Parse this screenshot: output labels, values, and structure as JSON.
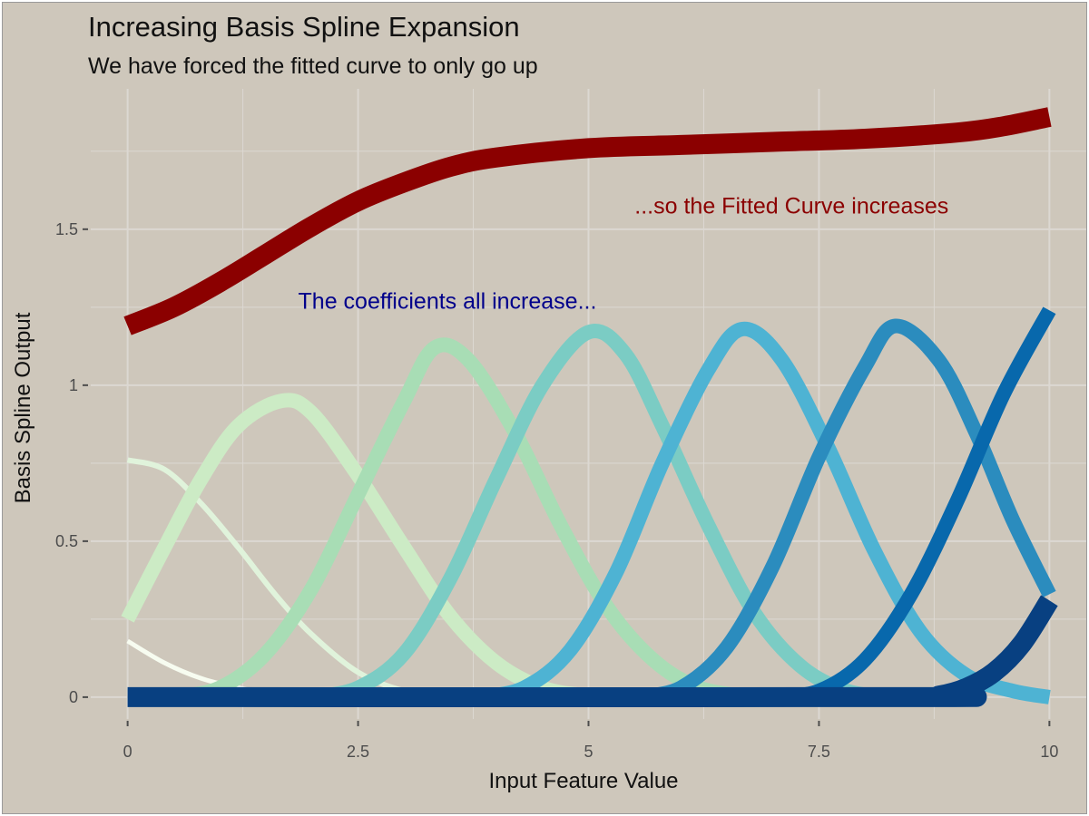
{
  "chart_data": {
    "type": "line",
    "title": "Increasing Basis Spline Expansion",
    "subtitle": "We have forced the fitted curve to only go up",
    "xlabel": "Input Feature Value",
    "ylabel": "Basis Spline Output",
    "xlim": [
      -0.4,
      10.4
    ],
    "ylim": [
      -0.07,
      1.95
    ],
    "x_ticks": [
      0,
      2.5,
      5,
      7.5,
      10
    ],
    "x_tick_labels": [
      "0",
      "2.5",
      "5",
      "7.5",
      "10"
    ],
    "x_minor_ticks": [
      1.25,
      3.75,
      6.25,
      8.75
    ],
    "y_ticks": [
      0,
      0.5,
      1,
      1.5
    ],
    "y_tick_labels": [
      "0",
      "0.5",
      "1",
      "1.5"
    ],
    "y_minor_ticks": [
      0.25,
      0.75,
      1.25,
      1.75
    ],
    "grid": true,
    "background": "#cec7bb",
    "grid_color": "#dcd8d2",
    "annotations": [
      {
        "text": "...so the Fitted Curve increases",
        "x": 5.5,
        "y": 1.55,
        "color": "#8b0000",
        "anchor": "start"
      },
      {
        "text": "The coefficients all increase...",
        "x": 1.85,
        "y": 1.245,
        "color": "#00008b",
        "anchor": "start"
      }
    ],
    "series": [
      {
        "name": "basis-1",
        "color": "#f7fcf0",
        "width": 5,
        "points": [
          [
            0,
            0.18
          ],
          [
            0.4,
            0.11
          ],
          [
            0.8,
            0.06
          ],
          [
            1.2,
            0.03
          ],
          [
            1.6,
            0.01
          ],
          [
            2.0,
            0.003
          ],
          [
            2.5,
            0
          ]
        ]
      },
      {
        "name": "basis-2",
        "color": "#e0f3db",
        "width": 6,
        "points": [
          [
            0,
            0.76
          ],
          [
            0.4,
            0.73
          ],
          [
            0.8,
            0.62
          ],
          [
            1.2,
            0.48
          ],
          [
            1.6,
            0.33
          ],
          [
            2.0,
            0.2
          ],
          [
            2.5,
            0.08
          ],
          [
            3.0,
            0.02
          ],
          [
            3.5,
            0.003
          ],
          [
            4.0,
            0
          ]
        ]
      },
      {
        "name": "basis-3",
        "color": "#ccebc5",
        "width": 16,
        "points": [
          [
            0,
            0.25
          ],
          [
            0.4,
            0.48
          ],
          [
            0.8,
            0.7
          ],
          [
            1.2,
            0.87
          ],
          [
            1.67,
            0.95
          ],
          [
            2.0,
            0.91
          ],
          [
            2.5,
            0.71
          ],
          [
            3.0,
            0.48
          ],
          [
            3.5,
            0.26
          ],
          [
            4.0,
            0.11
          ],
          [
            4.5,
            0.03
          ],
          [
            5.0,
            0.005
          ],
          [
            5.5,
            0
          ]
        ]
      },
      {
        "name": "basis-4",
        "color": "#a8ddb5",
        "width": 16,
        "points": [
          [
            0.5,
            0
          ],
          [
            1.0,
            0.03
          ],
          [
            1.5,
            0.14
          ],
          [
            2.0,
            0.35
          ],
          [
            2.5,
            0.65
          ],
          [
            3.0,
            0.95
          ],
          [
            3.33,
            1.12
          ],
          [
            3.7,
            1.08
          ],
          [
            4.2,
            0.85
          ],
          [
            4.7,
            0.55
          ],
          [
            5.2,
            0.29
          ],
          [
            5.7,
            0.12
          ],
          [
            6.2,
            0.03
          ],
          [
            6.8,
            0
          ]
        ]
      },
      {
        "name": "basis-5",
        "color": "#7bccc4",
        "width": 16,
        "points": [
          [
            2.0,
            0
          ],
          [
            2.5,
            0.03
          ],
          [
            3.0,
            0.14
          ],
          [
            3.5,
            0.38
          ],
          [
            4.0,
            0.7
          ],
          [
            4.5,
            1.0
          ],
          [
            5.0,
            1.17
          ],
          [
            5.4,
            1.1
          ],
          [
            5.8,
            0.87
          ],
          [
            6.3,
            0.55
          ],
          [
            6.8,
            0.27
          ],
          [
            7.3,
            0.1
          ],
          [
            7.8,
            0.02
          ],
          [
            8.3,
            0
          ]
        ]
      },
      {
        "name": "basis-6",
        "color": "#4eb3d3",
        "width": 16,
        "points": [
          [
            3.8,
            0
          ],
          [
            4.3,
            0.03
          ],
          [
            4.8,
            0.15
          ],
          [
            5.3,
            0.4
          ],
          [
            5.8,
            0.75
          ],
          [
            6.3,
            1.05
          ],
          [
            6.67,
            1.18
          ],
          [
            7.1,
            1.08
          ],
          [
            7.6,
            0.8
          ],
          [
            8.1,
            0.47
          ],
          [
            8.6,
            0.21
          ],
          [
            9.1,
            0.07
          ],
          [
            9.6,
            0.02
          ],
          [
            10,
            0
          ]
        ]
      },
      {
        "name": "basis-7",
        "color": "#2b8cbe",
        "width": 16,
        "points": [
          [
            5.5,
            0
          ],
          [
            6.0,
            0.03
          ],
          [
            6.5,
            0.16
          ],
          [
            7.0,
            0.42
          ],
          [
            7.5,
            0.77
          ],
          [
            8.0,
            1.06
          ],
          [
            8.33,
            1.19
          ],
          [
            8.8,
            1.08
          ],
          [
            9.2,
            0.85
          ],
          [
            9.6,
            0.57
          ],
          [
            10,
            0.33
          ]
        ]
      },
      {
        "name": "basis-8",
        "color": "#0868ac",
        "width": 16,
        "points": [
          [
            7.0,
            0
          ],
          [
            7.5,
            0.02
          ],
          [
            8.0,
            0.12
          ],
          [
            8.5,
            0.33
          ],
          [
            9.0,
            0.63
          ],
          [
            9.5,
            0.97
          ],
          [
            10,
            1.24
          ]
        ]
      },
      {
        "name": "basis-9",
        "color": "#084081",
        "width": 22,
        "points": [
          [
            0,
            0
          ],
          [
            8.5,
            0
          ],
          [
            8.8,
            0.005
          ],
          [
            9.1,
            0.03
          ],
          [
            9.4,
            0.08
          ],
          [
            9.7,
            0.17
          ],
          [
            10,
            0.31
          ]
        ]
      },
      {
        "name": "fitted-curve",
        "color": "#8b0000",
        "width": 22,
        "points": [
          [
            0,
            1.19
          ],
          [
            0.5,
            1.25
          ],
          [
            1.0,
            1.33
          ],
          [
            1.5,
            1.42
          ],
          [
            2.0,
            1.51
          ],
          [
            2.5,
            1.59
          ],
          [
            3.0,
            1.65
          ],
          [
            3.5,
            1.7
          ],
          [
            4.0,
            1.73
          ],
          [
            5.0,
            1.76
          ],
          [
            6.0,
            1.77
          ],
          [
            7.0,
            1.78
          ],
          [
            8.0,
            1.79
          ],
          [
            9.0,
            1.81
          ],
          [
            9.5,
            1.83
          ],
          [
            10,
            1.86
          ]
        ]
      }
    ]
  }
}
